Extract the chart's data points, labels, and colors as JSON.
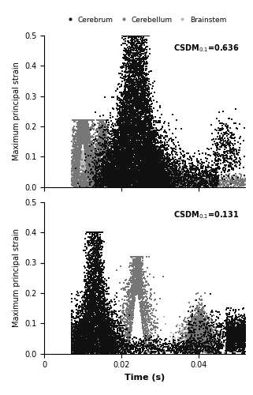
{
  "legend_labels": [
    "Cerebrum",
    "Cerebellum",
    "Brainstem"
  ],
  "cerebrum_color": "#111111",
  "cerebellum_color": "#777777",
  "brainstem_color": "#bbbbbb",
  "ylabel": "Maximum principal strain",
  "xlabel": "Time (s)",
  "ylim": [
    0,
    0.5
  ],
  "xlim": [
    0,
    0.052
  ],
  "yticks": [
    0,
    0.1,
    0.2,
    0.3,
    0.4,
    0.5
  ],
  "xticks": [
    0,
    0.02,
    0.04
  ],
  "xticklabels": [
    "0",
    "0.02",
    "0.04"
  ],
  "subplot1_label": "CSDM$_{0.1}$=0.636",
  "subplot2_label": "CSDM$_{0.1}$=0.131",
  "marker_size": 1.2,
  "seed": 42
}
